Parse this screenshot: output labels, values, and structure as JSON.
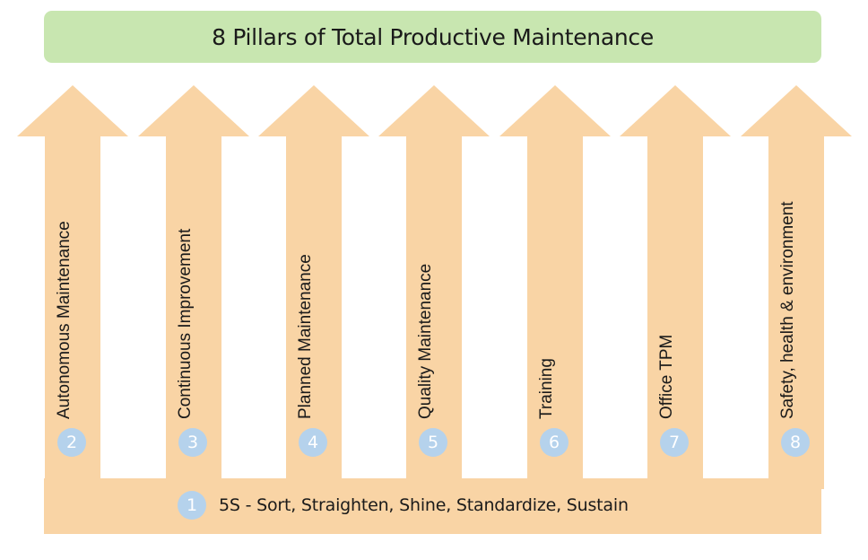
{
  "title": "8 Pillars of Total Productive Maintenance",
  "foundation": {
    "number": "1",
    "label": "5S - Sort, Straighten, Shine, Standardize, Sustain"
  },
  "pillars": [
    {
      "number": "2",
      "label": "Autonomous Maintenance"
    },
    {
      "number": "3",
      "label": "Continuous Improvement"
    },
    {
      "number": "4",
      "label": "Planned Maintenance"
    },
    {
      "number": "5",
      "label": "Quality Maintenance"
    },
    {
      "number": "6",
      "label": "Training"
    },
    {
      "number": "7",
      "label": "Office TPM"
    },
    {
      "number": "8",
      "label": "Safety, health & environment"
    }
  ],
  "colors": {
    "title_banner": "#c8e6b0",
    "arrow_fill": "#f9d4a5",
    "badge_fill": "#b5d2ec"
  }
}
